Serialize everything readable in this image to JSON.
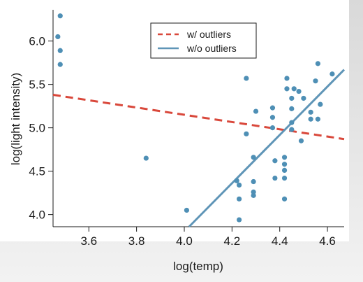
{
  "chart_data": {
    "type": "scatter",
    "title": "",
    "xlabel": "log(temp)",
    "ylabel": "log(light intensity)",
    "xlim": [
      3.45,
      4.67
    ],
    "ylim": [
      3.86,
      6.36
    ],
    "xticks": [
      3.6,
      3.8,
      4.0,
      4.2,
      4.4,
      4.6
    ],
    "xtick_labels": [
      "3.6",
      "3.8",
      "4.0",
      "4.2",
      "4.4",
      "4.6"
    ],
    "yticks": [
      4.0,
      4.5,
      5.0,
      5.5,
      6.0
    ],
    "ytick_labels": [
      "4.0",
      "4.5",
      "5.0",
      "5.5",
      "6.0"
    ],
    "legend_position": "top-center",
    "grid": false,
    "point_color": "#4e8fb5",
    "points": [
      {
        "x": 3.48,
        "y": 6.29
      },
      {
        "x": 3.47,
        "y": 6.05
      },
      {
        "x": 3.48,
        "y": 5.89
      },
      {
        "x": 3.48,
        "y": 5.73
      },
      {
        "x": 3.84,
        "y": 4.65
      },
      {
        "x": 4.01,
        "y": 4.05
      },
      {
        "x": 4.22,
        "y": 4.39
      },
      {
        "x": 4.23,
        "y": 4.34
      },
      {
        "x": 4.23,
        "y": 4.18
      },
      {
        "x": 4.23,
        "y": 3.94
      },
      {
        "x": 4.26,
        "y": 5.57
      },
      {
        "x": 4.26,
        "y": 4.93
      },
      {
        "x": 4.29,
        "y": 4.66
      },
      {
        "x": 4.29,
        "y": 4.38
      },
      {
        "x": 4.29,
        "y": 4.26
      },
      {
        "x": 4.29,
        "y": 4.22
      },
      {
        "x": 4.3,
        "y": 5.19
      },
      {
        "x": 4.37,
        "y": 5.23
      },
      {
        "x": 4.37,
        "y": 5.12
      },
      {
        "x": 4.37,
        "y": 5.0
      },
      {
        "x": 4.38,
        "y": 4.62
      },
      {
        "x": 4.38,
        "y": 4.42
      },
      {
        "x": 4.42,
        "y": 4.66
      },
      {
        "x": 4.42,
        "y": 4.58
      },
      {
        "x": 4.42,
        "y": 4.51
      },
      {
        "x": 4.42,
        "y": 4.42
      },
      {
        "x": 4.42,
        "y": 4.18
      },
      {
        "x": 4.43,
        "y": 5.57
      },
      {
        "x": 4.43,
        "y": 5.45
      },
      {
        "x": 4.45,
        "y": 5.34
      },
      {
        "x": 4.45,
        "y": 5.22
      },
      {
        "x": 4.45,
        "y": 5.06
      },
      {
        "x": 4.45,
        "y": 4.98
      },
      {
        "x": 4.46,
        "y": 5.45
      },
      {
        "x": 4.48,
        "y": 5.42
      },
      {
        "x": 4.49,
        "y": 4.85
      },
      {
        "x": 4.5,
        "y": 5.34
      },
      {
        "x": 4.53,
        "y": 5.18
      },
      {
        "x": 4.53,
        "y": 5.1
      },
      {
        "x": 4.55,
        "y": 5.54
      },
      {
        "x": 4.56,
        "y": 5.74
      },
      {
        "x": 4.56,
        "y": 5.1
      },
      {
        "x": 4.57,
        "y": 5.27
      },
      {
        "x": 4.62,
        "y": 5.62
      }
    ],
    "series": [
      {
        "name": "w/ outliers",
        "color": "#d9483b",
        "style": "dashed",
        "x": [
          3.45,
          4.67
        ],
        "y": [
          5.38,
          4.87
        ]
      },
      {
        "name": "w/o outliers",
        "color": "#5f95b7",
        "style": "solid",
        "x": [
          4.02,
          4.67
        ],
        "y": [
          3.86,
          5.67
        ]
      }
    ]
  }
}
